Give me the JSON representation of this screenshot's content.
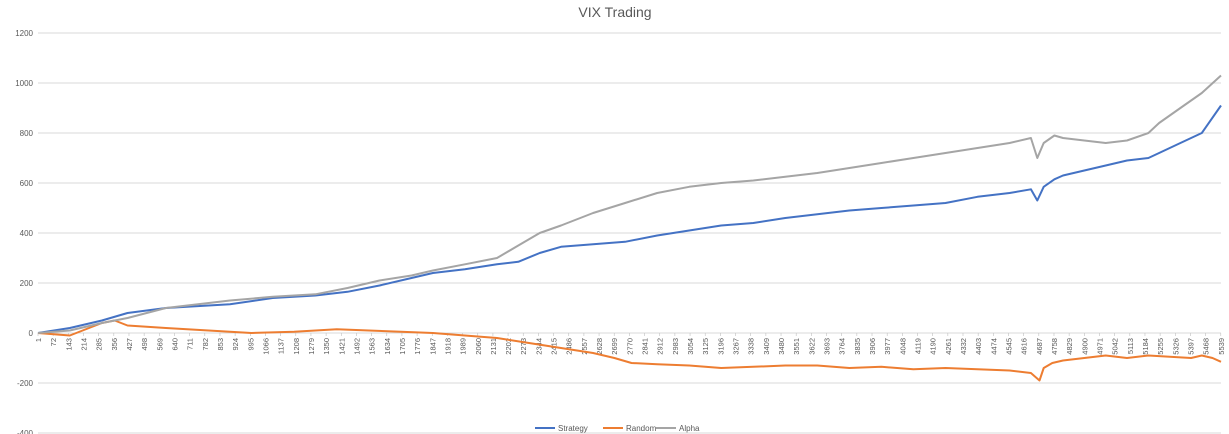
{
  "chart_data": {
    "type": "line",
    "title": "VIX Trading",
    "xlabel": "",
    "ylabel": "",
    "ylim": [
      -400,
      1200
    ],
    "yticks": [
      -400,
      -200,
      0,
      200,
      400,
      600,
      800,
      1000,
      1200
    ],
    "xlim": [
      1,
      5540
    ],
    "xticks": [
      1,
      72,
      143,
      214,
      285,
      356,
      427,
      498,
      569,
      640,
      711,
      782,
      853,
      924,
      995,
      1066,
      1137,
      1208,
      1279,
      1350,
      1421,
      1492,
      1563,
      1634,
      1705,
      1776,
      1847,
      1918,
      1989,
      2060,
      2131,
      2202,
      2273,
      2344,
      2415,
      2486,
      2557,
      2628,
      2699,
      2770,
      2841,
      2912,
      2983,
      3054,
      3125,
      3196,
      3267,
      3338,
      3409,
      3480,
      3551,
      3622,
      3693,
      3764,
      3835,
      3906,
      3977,
      4048,
      4119,
      4190,
      4261,
      4332,
      4403,
      4474,
      4545,
      4616,
      4687,
      4758,
      4829,
      4900,
      4971,
      5042,
      5113,
      5184,
      5255,
      5326,
      5397,
      5468,
      5539
    ],
    "grid": "horizontal",
    "legend_position": "bottom",
    "series": [
      {
        "name": "Strategy",
        "color": "#4472C4",
        "x": [
          1,
          150,
          300,
          420,
          600,
          900,
          1100,
          1300,
          1450,
          1600,
          1750,
          1850,
          2000,
          2150,
          2250,
          2350,
          2450,
          2600,
          2750,
          2900,
          3050,
          3200,
          3350,
          3500,
          3650,
          3800,
          3950,
          4100,
          4250,
          4400,
          4550,
          4650,
          4680,
          4710,
          4760,
          4800,
          4900,
          5000,
          5100,
          5200,
          5250,
          5350,
          5450,
          5540
        ],
        "y": [
          0,
          20,
          50,
          80,
          100,
          115,
          140,
          150,
          165,
          190,
          220,
          240,
          255,
          275,
          285,
          320,
          345,
          355,
          365,
          390,
          410,
          430,
          440,
          460,
          475,
          490,
          500,
          510,
          520,
          545,
          560,
          575,
          530,
          585,
          615,
          630,
          650,
          670,
          690,
          700,
          720,
          760,
          800,
          910
        ]
      },
      {
        "name": "Random",
        "color": "#ED7D31",
        "x": [
          1,
          150,
          300,
          360,
          420,
          600,
          800,
          1000,
          1200,
          1400,
          1550,
          1700,
          1850,
          2000,
          2150,
          2300,
          2450,
          2600,
          2700,
          2780,
          2900,
          3050,
          3200,
          3350,
          3500,
          3650,
          3800,
          3950,
          4100,
          4250,
          4400,
          4550,
          4650,
          4690,
          4710,
          4750,
          4800,
          4900,
          5000,
          5100,
          5200,
          5300,
          5400,
          5450,
          5500,
          5540
        ],
        "y": [
          0,
          -10,
          40,
          50,
          30,
          20,
          10,
          0,
          5,
          15,
          10,
          5,
          0,
          -10,
          -20,
          -40,
          -60,
          -80,
          -100,
          -120,
          -125,
          -130,
          -140,
          -135,
          -130,
          -130,
          -140,
          -135,
          -145,
          -140,
          -145,
          -150,
          -160,
          -190,
          -140,
          -120,
          -110,
          -100,
          -90,
          -100,
          -90,
          -95,
          -100,
          -90,
          -100,
          -115
        ]
      },
      {
        "name": "Alpha",
        "color": "#A5A5A5",
        "x": [
          1,
          150,
          300,
          420,
          600,
          900,
          1100,
          1300,
          1450,
          1600,
          1750,
          1850,
          2000,
          2150,
          2250,
          2350,
          2450,
          2600,
          2750,
          2900,
          3050,
          3200,
          3350,
          3500,
          3650,
          3800,
          3950,
          4100,
          4250,
          4400,
          4550,
          4650,
          4680,
          4710,
          4760,
          4800,
          4900,
          5000,
          5100,
          5200,
          5250,
          5350,
          5450,
          5540
        ],
        "y": [
          0,
          10,
          40,
          60,
          100,
          130,
          145,
          155,
          180,
          210,
          230,
          250,
          275,
          300,
          350,
          400,
          430,
          480,
          520,
          560,
          585,
          600,
          610,
          625,
          640,
          660,
          680,
          700,
          720,
          740,
          760,
          780,
          700,
          760,
          790,
          780,
          770,
          760,
          770,
          800,
          840,
          900,
          960,
          1030
        ]
      }
    ]
  }
}
